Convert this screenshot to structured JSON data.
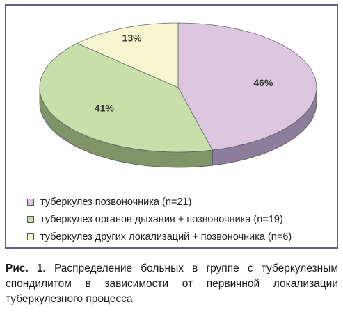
{
  "chart_data": {
    "type": "pie",
    "style": "3d",
    "slices": [
      {
        "label": "туберкулез позвоночника (n=21)",
        "percent_label": "46%",
        "value": 46,
        "color": "#dcc6e0"
      },
      {
        "label": "туберкулез органов дыхания + позвоночника (n=19)",
        "percent_label": "41%",
        "value": 41,
        "color": "#c8dfaa"
      },
      {
        "label": "туберкулез других локализаций + позвоночника (n=6)",
        "percent_label": "13%",
        "value": 13,
        "color": "#f5f5cf"
      }
    ],
    "legend_position": "bottom-left"
  },
  "caption": {
    "label": "Рис. 1.",
    "text": "Распределение больных в группе с туберкулезным спондилитом в зависимости от первичной локализации туберкулезного процесса"
  },
  "colors": {
    "frame": "#6a5d86",
    "side_purple": "#8c7d9b",
    "side_green": "#7f9568"
  }
}
